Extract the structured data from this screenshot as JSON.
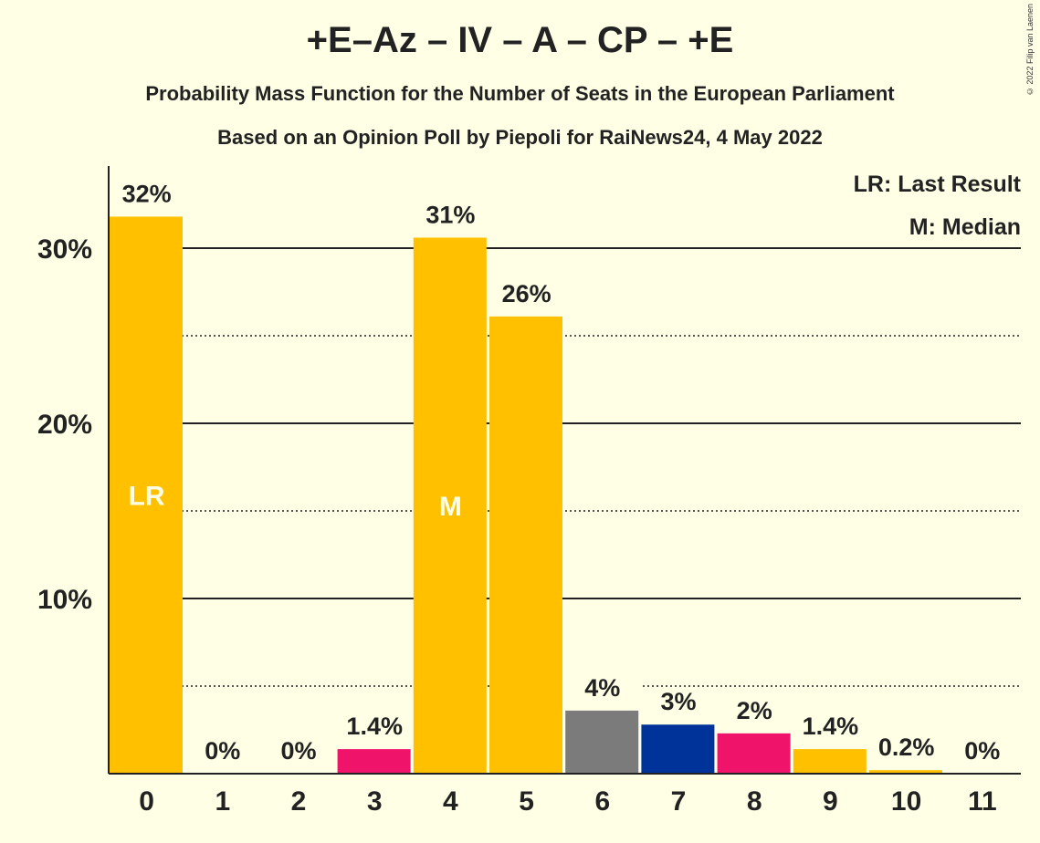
{
  "title": "+E–Az – IV – A – CP – +E",
  "subtitle1": "Probability Mass Function for the Number of Seats in the European Parliament",
  "subtitle2": "Based on an Opinion Poll by Piepoli for RaiNews24, 4 May 2022",
  "copyright": "© 2022 Filip van Laenen",
  "legend": {
    "lr": "LR: Last Result",
    "m": "M: Median"
  },
  "chart_data": {
    "type": "bar",
    "categories": [
      "0",
      "1",
      "2",
      "3",
      "4",
      "5",
      "6",
      "7",
      "8",
      "9",
      "10",
      "11"
    ],
    "values": [
      31.8,
      0,
      0,
      1.4,
      30.6,
      26.1,
      3.6,
      2.8,
      2.3,
      1.4,
      0.2,
      0
    ],
    "value_labels": [
      "32%",
      "0%",
      "0%",
      "1.4%",
      "31%",
      "26%",
      "4%",
      "3%",
      "2%",
      "1.4%",
      "0.2%",
      "0%"
    ],
    "colors": [
      "#FFC000",
      "#FFC000",
      "#FFC000",
      "#F0136A",
      "#FFC000",
      "#FFC000",
      "#7B7B7B",
      "#003399",
      "#F0136A",
      "#FFC000",
      "#FFC000",
      "#FFC000"
    ],
    "y_ticks": [
      10,
      20,
      30
    ],
    "y_tick_labels": [
      "10%",
      "20%",
      "30%"
    ],
    "ylim": [
      0,
      35
    ],
    "grid": "solid major lines, dotted minor lines",
    "annotations": [
      {
        "category": "0",
        "text": "LR"
      },
      {
        "category": "4",
        "text": "M"
      }
    ],
    "legend_position": "top-right"
  }
}
